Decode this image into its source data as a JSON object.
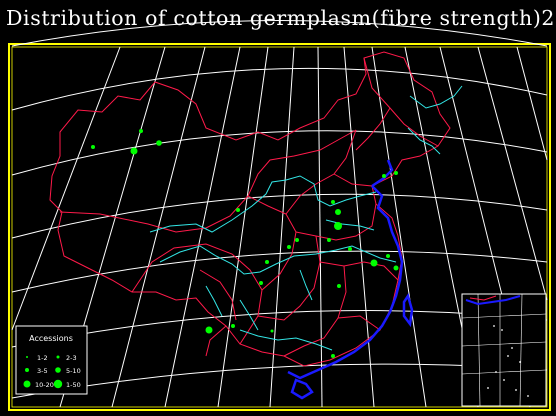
{
  "title": "Distribution of cotton germplasm(fibre strength)25)",
  "legend": {
    "title": "Accessions",
    "items": [
      {
        "label": "1-2"
      },
      {
        "label": "3-5"
      },
      {
        "label": "10-20"
      },
      {
        "label": "2-3"
      },
      {
        "label": "5-10"
      },
      {
        "label": "1-50"
      }
    ]
  },
  "colors": {
    "background": "#000000",
    "frame": "#ffff00",
    "graticule": "#ffffff",
    "province_borders": "#ff1a4a",
    "rivers": "#33e6e6",
    "coastline": "#1a1aff",
    "points": "#00ff00"
  }
}
